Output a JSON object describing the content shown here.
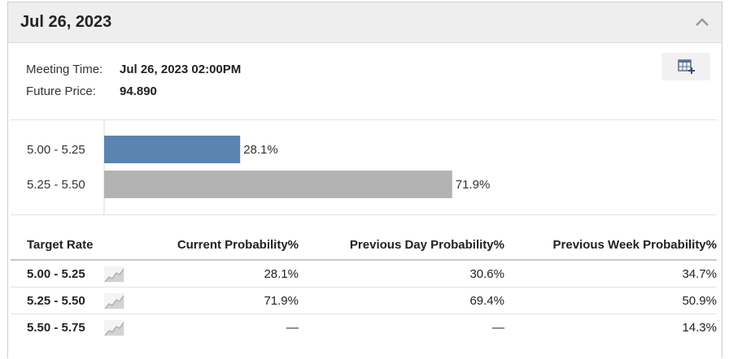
{
  "header": {
    "title": "Jul 26, 2023",
    "collapse_icon": "chevron-up-icon"
  },
  "meeting": {
    "time_label": "Meeting Time:",
    "time_value": "Jul 26, 2023 02:00PM",
    "price_label": "Future Price:",
    "price_value": "94.890",
    "calendar_icon": "calendar-add-icon"
  },
  "chart_data": {
    "type": "bar",
    "orientation": "horizontal",
    "categories": [
      "5.00 - 5.25",
      "5.25 - 5.50"
    ],
    "values": [
      28.1,
      71.9
    ],
    "value_labels": [
      "28.1%",
      "71.9%"
    ],
    "colors": [
      "#5b84b1",
      "#b3b3b3"
    ],
    "xlim": [
      0,
      100
    ],
    "grid": false
  },
  "table": {
    "headers": [
      "Target Rate",
      "Current Probability%",
      "Previous Day Probability%",
      "Previous Week Probability%"
    ],
    "rows": [
      {
        "rate": "5.00 - 5.25",
        "current": "28.1%",
        "prev_day": "30.6%",
        "prev_week": "34.7%"
      },
      {
        "rate": "5.25 - 5.50",
        "current": "71.9%",
        "prev_day": "69.4%",
        "prev_week": "50.9%"
      },
      {
        "rate": "5.50 - 5.75",
        "current": "—",
        "prev_day": "—",
        "prev_week": "14.3%"
      }
    ],
    "row_icon": "trend-chart-icon"
  }
}
